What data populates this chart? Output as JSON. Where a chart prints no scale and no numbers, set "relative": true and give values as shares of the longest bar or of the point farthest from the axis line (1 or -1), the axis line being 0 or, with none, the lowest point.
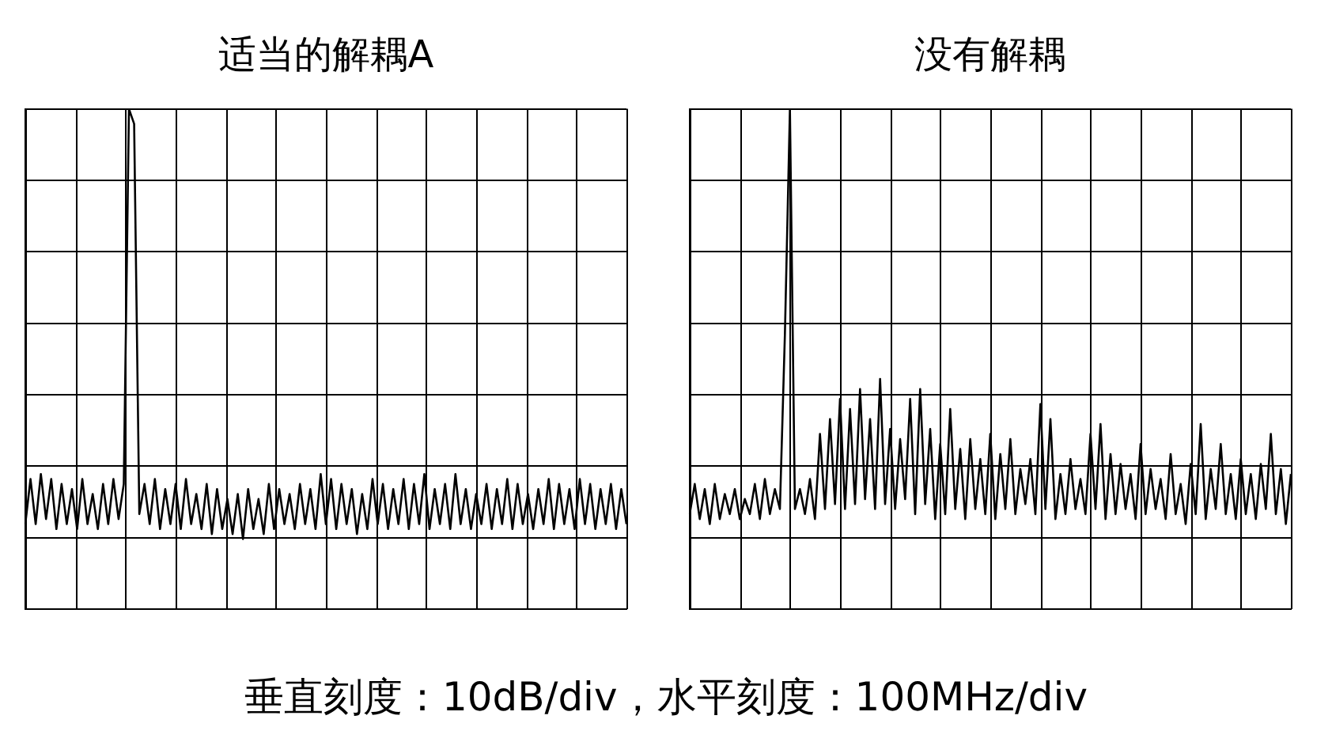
{
  "chart_data": [
    {
      "type": "line",
      "title": "适当的解耦A",
      "relative": true,
      "grid": true,
      "marker": "none",
      "annotations": [
        "垂直刻度：10dB/div，水平刻度：100MHz/div"
      ],
      "categories": [
        null,
        null,
        null,
        null,
        null,
        null,
        null,
        null,
        null,
        null,
        null,
        null,
        null,
        null,
        null,
        null,
        null,
        null,
        null,
        null,
        null,
        null,
        null,
        null,
        null,
        null,
        null,
        null,
        null,
        null,
        null,
        null,
        null,
        null,
        null,
        null,
        null,
        null,
        null,
        null,
        null,
        null,
        null,
        null,
        null,
        null,
        null,
        null,
        null,
        null,
        null,
        null,
        null,
        null,
        null,
        null,
        null,
        null,
        null,
        null,
        null,
        null,
        null,
        null,
        null,
        null,
        null,
        null,
        null,
        null,
        null,
        null,
        null,
        null,
        null,
        null,
        null,
        null,
        null,
        null,
        null,
        null,
        null,
        null,
        null,
        null,
        null,
        null,
        null,
        null,
        null,
        null,
        null,
        null,
        null,
        null,
        null,
        null,
        null,
        null,
        null,
        null,
        null,
        null,
        null,
        null,
        null,
        null,
        null,
        null,
        null,
        null,
        null,
        null,
        null,
        null,
        null
      ],
      "series": [
        {
          "color": "#000000",
          "values": [
            0.17,
            0.26,
            0.17,
            0.27,
            0.18,
            0.26,
            0.16,
            0.25,
            0.17,
            0.24,
            0.16,
            0.26,
            0.17,
            0.23,
            0.16,
            0.25,
            0.17,
            0.26,
            0.18,
            0.25,
            1.0,
            0.97,
            0.19,
            0.25,
            0.17,
            0.26,
            0.16,
            0.24,
            0.17,
            0.25,
            0.16,
            0.26,
            0.17,
            0.23,
            0.16,
            0.25,
            0.15,
            0.24,
            0.16,
            0.22,
            0.15,
            0.23,
            0.14,
            0.24,
            0.16,
            0.22,
            0.15,
            0.25,
            0.16,
            0.24,
            0.17,
            0.23,
            0.16,
            0.25,
            0.17,
            0.24,
            0.16,
            0.27,
            0.17,
            0.26,
            0.16,
            0.25,
            0.17,
            0.24,
            0.15,
            0.23,
            0.16,
            0.26,
            0.17,
            0.25,
            0.16,
            0.24,
            0.17,
            0.26,
            0.16,
            0.25,
            0.17,
            0.27,
            0.16,
            0.24,
            0.17,
            0.25,
            0.16,
            0.27,
            0.17,
            0.24,
            0.16,
            0.23,
            0.17,
            0.25,
            0.16,
            0.24,
            0.17,
            0.26,
            0.16,
            0.25,
            0.17,
            0.23,
            0.16,
            0.24,
            0.17,
            0.26,
            0.16,
            0.25,
            0.17,
            0.24,
            0.16,
            0.26,
            0.17,
            0.25,
            0.16,
            0.24,
            0.17,
            0.25,
            0.16,
            0.24,
            0.17
          ]
        }
      ]
    },
    {
      "type": "line",
      "title": "没有解耦",
      "relative": true,
      "grid": true,
      "marker": "none",
      "categories": [
        null,
        null,
        null,
        null,
        null,
        null,
        null,
        null,
        null,
        null,
        null,
        null,
        null,
        null,
        null,
        null,
        null,
        null,
        null,
        null,
        null,
        null,
        null,
        null,
        null,
        null,
        null,
        null,
        null,
        null,
        null,
        null,
        null,
        null,
        null,
        null,
        null,
        null,
        null,
        null,
        null,
        null,
        null,
        null,
        null,
        null,
        null,
        null,
        null,
        null,
        null,
        null,
        null,
        null,
        null,
        null,
        null,
        null,
        null,
        null,
        null,
        null,
        null,
        null,
        null,
        null,
        null,
        null,
        null,
        null,
        null,
        null,
        null,
        null,
        null,
        null,
        null,
        null,
        null,
        null,
        null,
        null,
        null,
        null,
        null,
        null,
        null,
        null,
        null,
        null,
        null,
        null,
        null,
        null,
        null,
        null,
        null,
        null,
        null,
        null,
        null,
        null,
        null,
        null,
        null,
        null,
        null,
        null,
        null,
        null,
        null,
        null,
        null,
        null,
        null,
        null,
        null,
        null,
        null,
        null,
        null
      ],
      "series": [
        {
          "color": "#000000",
          "values": [
            0.19,
            0.25,
            0.18,
            0.24,
            0.17,
            0.25,
            0.18,
            0.23,
            0.19,
            0.24,
            0.18,
            0.22,
            0.19,
            0.25,
            0.18,
            0.26,
            0.19,
            0.24,
            0.2,
            0.55,
            1.0,
            0.2,
            0.24,
            0.19,
            0.26,
            0.18,
            0.35,
            0.2,
            0.38,
            0.21,
            0.42,
            0.2,
            0.4,
            0.21,
            0.44,
            0.22,
            0.38,
            0.2,
            0.46,
            0.21,
            0.36,
            0.2,
            0.34,
            0.22,
            0.42,
            0.19,
            0.44,
            0.21,
            0.36,
            0.18,
            0.33,
            0.19,
            0.4,
            0.2,
            0.32,
            0.18,
            0.34,
            0.2,
            0.3,
            0.19,
            0.35,
            0.18,
            0.31,
            0.2,
            0.34,
            0.19,
            0.28,
            0.21,
            0.3,
            0.19,
            0.41,
            0.2,
            0.38,
            0.18,
            0.27,
            0.19,
            0.3,
            0.2,
            0.26,
            0.19,
            0.35,
            0.2,
            0.37,
            0.18,
            0.31,
            0.19,
            0.29,
            0.2,
            0.27,
            0.18,
            0.33,
            0.19,
            0.28,
            0.2,
            0.26,
            0.18,
            0.31,
            0.19,
            0.25,
            0.17,
            0.29,
            0.19,
            0.37,
            0.18,
            0.28,
            0.2,
            0.33,
            0.19,
            0.27,
            0.18,
            0.3,
            0.19,
            0.27,
            0.18,
            0.29,
            0.2,
            0.35,
            0.19,
            0.28,
            0.17,
            0.27
          ]
        }
      ]
    }
  ]
}
